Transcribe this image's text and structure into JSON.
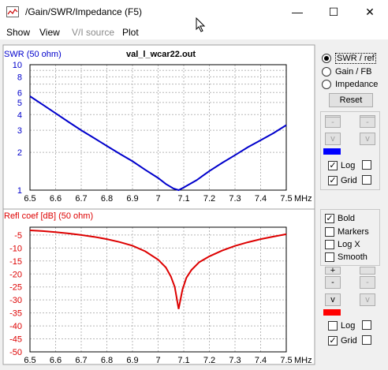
{
  "window": {
    "title": "/Gain/SWR/Impedance (F5)",
    "minimize": "—",
    "maximize": "☐",
    "close": "✕"
  },
  "menu": {
    "show": "Show",
    "view": "View",
    "vi_source": "V/I source",
    "plot": "Plot"
  },
  "plot_title": "val_l_wcar22.out",
  "top_panel": {
    "radios": [
      {
        "label": "SWR / ref",
        "selected": true
      },
      {
        "label": "Gain / FB",
        "selected": false
      },
      {
        "label": "Impedance",
        "selected": false
      }
    ],
    "reset_label": "Reset",
    "arrow_buttons": [
      "-",
      "-",
      "v",
      "v"
    ],
    "swatch_color": "#0000ff",
    "log_label": "Log",
    "log_checked": true,
    "grid_label": "Grid",
    "grid_checked": true
  },
  "bottom_panel": {
    "options": [
      {
        "label": "Bold",
        "checked": true
      },
      {
        "label": "Markers",
        "checked": false
      },
      {
        "label": "Log X",
        "checked": false
      },
      {
        "label": "Smooth",
        "checked": false
      }
    ],
    "arrow_buttons": [
      "+",
      "-",
      "-",
      "v",
      "v"
    ],
    "swatch_color": "#ff0000",
    "log_label": "Log",
    "log_checked": false,
    "grid_label": "Grid",
    "grid_checked": true
  },
  "chart_data": [
    {
      "type": "line",
      "ylabel": "SWR (50 ohm)",
      "xunit": "MHz",
      "x_ticks": [
        "6.5",
        "6.6",
        "6.7",
        "6.8",
        "6.9",
        "7",
        "7.1",
        "7.2",
        "7.3",
        "7.4",
        "7.5"
      ],
      "y_ticks": [
        "10",
        "8",
        "6",
        "5",
        "4",
        "3",
        "2",
        "1"
      ],
      "y_scale": "log",
      "ylim": [
        1,
        10
      ],
      "xlim": [
        6.5,
        7.5
      ],
      "color": "#0000cc",
      "series": [
        {
          "x": [
            6.5,
            6.55,
            6.6,
            6.65,
            6.7,
            6.75,
            6.8,
            6.85,
            6.9,
            6.95,
            7.0,
            7.03,
            7.06,
            7.08,
            7.1,
            7.15,
            7.2,
            7.25,
            7.3,
            7.35,
            7.4,
            7.45,
            7.5
          ],
          "y": [
            5.6,
            4.8,
            4.1,
            3.5,
            3.0,
            2.6,
            2.25,
            1.95,
            1.7,
            1.45,
            1.25,
            1.12,
            1.03,
            1.0,
            1.05,
            1.2,
            1.42,
            1.65,
            1.9,
            2.2,
            2.5,
            2.85,
            3.3
          ]
        }
      ]
    },
    {
      "type": "line",
      "ylabel": "Refl coef [dB] (50 ohm)",
      "xunit": "MHz",
      "x_ticks": [
        "6.5",
        "6.6",
        "6.7",
        "6.8",
        "6.9",
        "7",
        "7.1",
        "7.2",
        "7.3",
        "7.4",
        "7.5"
      ],
      "y_ticks": [
        "-5",
        "-10",
        "-15",
        "-20",
        "-25",
        "-30",
        "-35",
        "-40",
        "-45",
        "-50"
      ],
      "ylim": [
        -50,
        -2
      ],
      "xlim": [
        6.5,
        7.5
      ],
      "color": "#dd0000",
      "series": [
        {
          "x": [
            6.5,
            6.55,
            6.6,
            6.65,
            6.7,
            6.75,
            6.8,
            6.85,
            6.9,
            6.95,
            7.0,
            7.03,
            7.05,
            7.065,
            7.08,
            7.095,
            7.11,
            7.13,
            7.16,
            7.2,
            7.25,
            7.3,
            7.35,
            7.4,
            7.45,
            7.5
          ],
          "y": [
            -3.2,
            -3.5,
            -3.9,
            -4.4,
            -5.0,
            -5.7,
            -6.6,
            -7.7,
            -9.1,
            -11.3,
            -14.5,
            -17.5,
            -21,
            -25,
            -33.5,
            -26,
            -21.5,
            -18.5,
            -15.5,
            -13.2,
            -11,
            -9.2,
            -7.8,
            -6.6,
            -5.6,
            -4.7
          ]
        }
      ]
    }
  ]
}
